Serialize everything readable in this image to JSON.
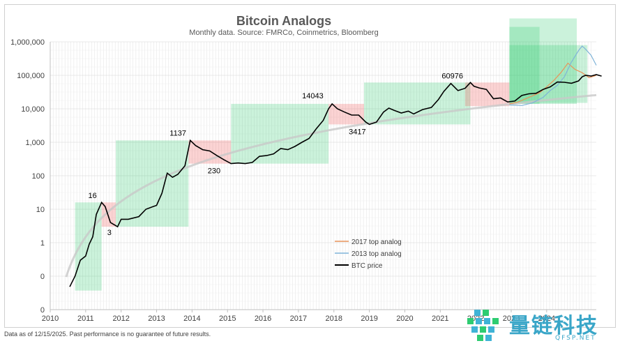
{
  "chart_data": {
    "type": "line",
    "title": "Bitcoin Analogs",
    "subtitle": "Monthly data.  Source: FMRCo, Coinmetrics, Bloomberg",
    "xlabel": "",
    "ylabel": "",
    "x_ticks": [
      "2010",
      "2011",
      "2012",
      "2013",
      "2014",
      "2015",
      "2016",
      "2017",
      "2018",
      "2019",
      "2020",
      "2021",
      "2022",
      "2023",
      "2024"
    ],
    "y_ticks": [
      "0",
      "0",
      "1",
      "10",
      "100",
      "1,000",
      "10,000",
      "100,000",
      "1,000,000"
    ],
    "y_scale": "log",
    "xlim": [
      2010,
      2025.4
    ],
    "grid": true,
    "legend_position": "bottom-center",
    "series": [
      {
        "name": "2017 top analog",
        "color": "#e8945a",
        "x": [
          2022.95,
          2023.2,
          2023.5,
          2023.8,
          2024.0,
          2024.2,
          2024.4,
          2024.6,
          2024.8,
          2025.0,
          2025.2,
          2025.4
        ],
        "y": [
          14000,
          16000,
          22000,
          30000,
          45000,
          70000,
          120000,
          230000,
          150000,
          120000,
          85000,
          100000
        ]
      },
      {
        "name": "2013 top analog",
        "color": "#7fb3d8",
        "x": [
          2022.95,
          2023.3,
          2023.6,
          2023.9,
          2024.1,
          2024.3,
          2024.5,
          2024.7,
          2024.9,
          2025.0,
          2025.1,
          2025.25,
          2025.4
        ],
        "y": [
          13000,
          12500,
          15000,
          22000,
          35000,
          50000,
          90000,
          250000,
          550000,
          750000,
          600000,
          400000,
          200000
        ]
      },
      {
        "name": "BTC price",
        "color": "#000000",
        "x": [
          2010.55,
          2010.7,
          2010.85,
          2011.0,
          2011.1,
          2011.2,
          2011.3,
          2011.45,
          2011.55,
          2011.7,
          2011.9,
          2012.0,
          2012.2,
          2012.5,
          2012.7,
          2012.9,
          2013.0,
          2013.15,
          2013.3,
          2013.45,
          2013.6,
          2013.8,
          2013.95,
          2014.1,
          2014.3,
          2014.5,
          2014.7,
          2014.9,
          2015.1,
          2015.3,
          2015.5,
          2015.7,
          2015.9,
          2016.1,
          2016.3,
          2016.5,
          2016.7,
          2016.9,
          2017.1,
          2017.3,
          2017.5,
          2017.7,
          2017.85,
          2017.95,
          2018.1,
          2018.3,
          2018.5,
          2018.7,
          2018.9,
          2019.0,
          2019.2,
          2019.4,
          2019.55,
          2019.7,
          2019.9,
          2020.1,
          2020.25,
          2020.5,
          2020.75,
          2020.95,
          2021.1,
          2021.3,
          2021.5,
          2021.7,
          2021.85,
          2021.95,
          2022.1,
          2022.3,
          2022.5,
          2022.7,
          2022.9,
          2023.1,
          2023.3,
          2023.5,
          2023.7,
          2023.9,
          2024.1,
          2024.3,
          2024.5,
          2024.7,
          2024.9,
          2025.0,
          2025.1,
          2025.25,
          2025.4,
          2025.55
        ],
        "y": [
          0.06,
          0.1,
          0.3,
          0.4,
          0.9,
          1.5,
          7,
          16,
          12,
          4,
          3,
          5,
          5,
          6,
          10,
          12,
          13,
          30,
          120,
          90,
          110,
          200,
          1137,
          800,
          600,
          550,
          400,
          300,
          230,
          240,
          230,
          250,
          380,
          400,
          450,
          650,
          600,
          750,
          1000,
          1300,
          2500,
          4500,
          10000,
          14043,
          10000,
          8000,
          6500,
          6500,
          4000,
          3417,
          4000,
          8000,
          10500,
          9000,
          7500,
          8500,
          7000,
          9500,
          11000,
          19000,
          33000,
          57000,
          35000,
          41000,
          60976,
          47000,
          42000,
          38000,
          20000,
          21000,
          16000,
          17000,
          25000,
          28000,
          29000,
          38000,
          45000,
          63000,
          62000,
          58000,
          68000,
          90000,
          100000,
          95000,
          105000,
          95000
        ]
      }
    ],
    "shaded_regions": [
      {
        "phase": "up",
        "x0": 2010.7,
        "x1": 2011.45,
        "y0": 0.05,
        "y1": 16
      },
      {
        "phase": "down",
        "x0": 2011.45,
        "x1": 2011.85,
        "y0": 3,
        "y1": 16
      },
      {
        "phase": "up",
        "x0": 2011.85,
        "x1": 2013.9,
        "y0": 3,
        "y1": 1137
      },
      {
        "phase": "down",
        "x0": 2013.9,
        "x1": 2015.1,
        "y0": 230,
        "y1": 1137
      },
      {
        "phase": "up",
        "x0": 2015.1,
        "x1": 2017.85,
        "y0": 230,
        "y1": 14043
      },
      {
        "phase": "down",
        "x0": 2017.85,
        "x1": 2018.85,
        "y0": 3417,
        "y1": 14043
      },
      {
        "phase": "up",
        "x0": 2018.85,
        "x1": 2021.85,
        "y0": 3417,
        "y1": 60976
      },
      {
        "phase": "down",
        "x0": 2021.7,
        "x1": 2022.95,
        "y0": 12000,
        "y1": 60976
      },
      {
        "phase": "up",
        "x0": 2022.95,
        "x1": 2024.85,
        "y0": 14000,
        "y1": 5000000
      },
      {
        "phase": "up",
        "x0": 2022.95,
        "x1": 2023.8,
        "y0": 14000,
        "y1": 2800000
      },
      {
        "phase": "up",
        "x0": 2022.95,
        "x1": 2025.15,
        "y0": 15000,
        "y1": 800000
      }
    ],
    "annotations": [
      {
        "text": "16",
        "x": 2011.35,
        "y": 16
      },
      {
        "text": "3",
        "x": 2011.55,
        "y": 3
      },
      {
        "text": "1137",
        "x": 2013.7,
        "y": 1137
      },
      {
        "text": "230",
        "x": 2014.7,
        "y": 230
      },
      {
        "text": "14043",
        "x": 2017.6,
        "y": 14043
      },
      {
        "text": "3417",
        "x": 2018.7,
        "y": 3417
      },
      {
        "text": "60976",
        "x": 2021.5,
        "y": 60976
      }
    ],
    "colors": {
      "up": "#2ecc71",
      "down": "#ef4f4f",
      "trend": "#c8c8c8",
      "grid": "#e6e6e6"
    }
  },
  "footnote": "Data as of 12/15/2025. Past performance is no guarantee of future results.",
  "watermark": {
    "name": "量链科技",
    "url": "QFSP.NET"
  }
}
